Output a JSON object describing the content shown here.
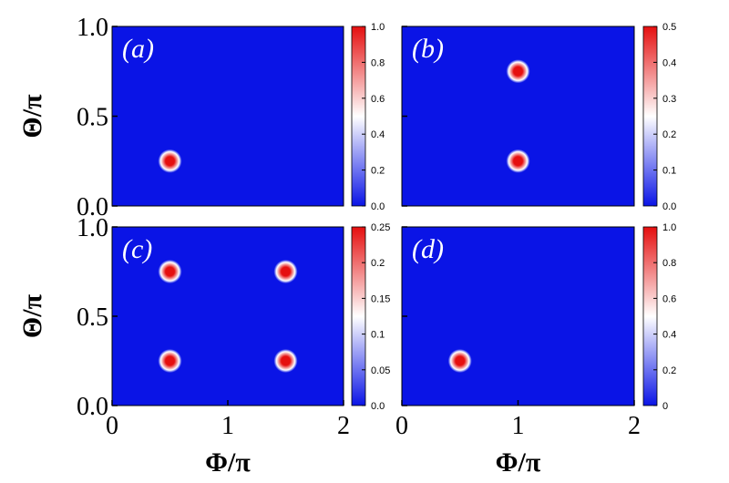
{
  "chart_data": [
    {
      "type": "heatmap",
      "panel_label": "(a)",
      "xlabel": "",
      "ylabel": "Θ/π",
      "xlim": [
        0,
        2
      ],
      "ylim": [
        0,
        1
      ],
      "x_ticks": [],
      "y_ticks": [
        "0.0",
        "0.5",
        "1.0"
      ],
      "colorbar": {
        "ticks": [
          "0.0",
          "0.2",
          "0.4",
          "0.6",
          "0.8",
          "1.0"
        ],
        "max": 1.0
      },
      "peaks": [
        {
          "x": 0.5,
          "y": 0.25,
          "value": 1.0
        }
      ]
    },
    {
      "type": "heatmap",
      "panel_label": "(b)",
      "xlabel": "",
      "ylabel": "",
      "xlim": [
        0,
        2
      ],
      "ylim": [
        0,
        1
      ],
      "x_ticks": [],
      "y_ticks": [],
      "colorbar": {
        "ticks": [
          "0.0",
          "0.1",
          "0.2",
          "0.3",
          "0.4",
          "0.5"
        ],
        "max": 0.5
      },
      "peaks": [
        {
          "x": 1.0,
          "y": 0.75,
          "value": 0.5
        },
        {
          "x": 1.0,
          "y": 0.25,
          "value": 0.5
        }
      ]
    },
    {
      "type": "heatmap",
      "panel_label": "(c)",
      "xlabel": "Φ/π",
      "ylabel": "Θ/π",
      "xlim": [
        0,
        2
      ],
      "ylim": [
        0,
        1
      ],
      "x_ticks": [
        "0",
        "1",
        "2"
      ],
      "y_ticks": [
        "0.0",
        "0.5",
        "1.0"
      ],
      "colorbar": {
        "ticks": [
          "0.0",
          "0.05",
          "0.1",
          "0.15",
          "0.2",
          "0.25"
        ],
        "max": 0.25
      },
      "peaks": [
        {
          "x": 0.5,
          "y": 0.75,
          "value": 0.25
        },
        {
          "x": 1.5,
          "y": 0.75,
          "value": 0.25
        },
        {
          "x": 0.5,
          "y": 0.25,
          "value": 0.25
        },
        {
          "x": 1.5,
          "y": 0.25,
          "value": 0.25
        }
      ]
    },
    {
      "type": "heatmap",
      "panel_label": "(d)",
      "xlabel": "Φ/π",
      "ylabel": "",
      "xlim": [
        0,
        2
      ],
      "ylim": [
        0,
        1
      ],
      "x_ticks": [
        "0",
        "1",
        "2"
      ],
      "y_ticks": [],
      "colorbar": {
        "ticks": [
          "0",
          "0.2",
          "0.4",
          "0.6",
          "0.8",
          "1.0"
        ],
        "max": 1.0
      },
      "peaks": [
        {
          "x": 0.5,
          "y": 0.25,
          "value": 1.0
        }
      ]
    }
  ],
  "colors": {
    "background": "#0a14e6",
    "mid": "#ffffff",
    "high": "#e50f0f",
    "low": "#0a14e6"
  }
}
